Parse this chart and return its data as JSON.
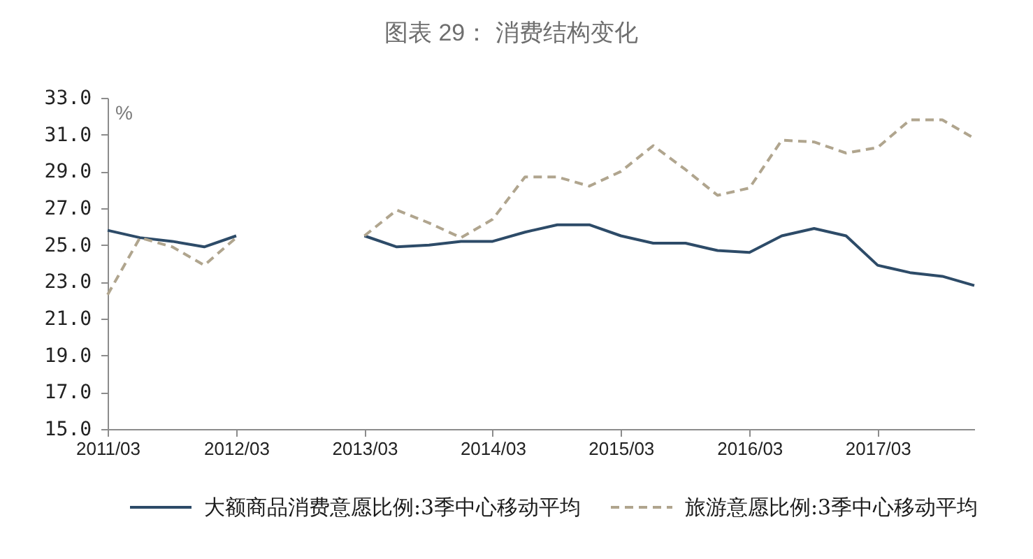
{
  "chart_data": {
    "type": "line",
    "title": "图表 29：  消费结构变化",
    "ylabel": "%",
    "x": [
      "2011-03",
      "2011-06",
      "2011-09",
      "2011-12",
      "2012-03",
      "2012-06",
      "2012-09",
      "2012-12",
      "2013-03",
      "2013-06",
      "2013-09",
      "2013-12",
      "2014-03",
      "2014-06",
      "2014-09",
      "2014-12",
      "2015-03",
      "2015-06",
      "2015-09",
      "2015-12",
      "2016-03",
      "2016-06",
      "2016-09",
      "2016-12",
      "2017-03",
      "2017-06",
      "2017-09",
      "2017-12"
    ],
    "series": [
      {
        "name": "大额商品消费意愿比例:3季中心移动平均",
        "color": "#2d4b68",
        "line_style": "solid",
        "values": [
          25.8,
          25.4,
          25.2,
          24.9,
          25.5,
          null,
          null,
          null,
          25.5,
          24.9,
          25.0,
          25.2,
          25.2,
          25.7,
          26.1,
          26.1,
          25.5,
          25.1,
          25.1,
          24.7,
          24.6,
          25.5,
          25.9,
          25.5,
          23.9,
          23.5,
          23.3,
          22.8
        ]
      },
      {
        "name": "旅游意愿比例:3季中心移动平均",
        "color": "#b0a58e",
        "line_style": "dashed",
        "values": [
          22.3,
          25.4,
          24.9,
          23.9,
          25.4,
          null,
          null,
          null,
          25.5,
          26.9,
          26.2,
          25.4,
          26.4,
          28.7,
          28.7,
          28.2,
          29.0,
          30.4,
          29.1,
          27.7,
          28.1,
          30.7,
          30.6,
          30.0,
          30.3,
          31.8,
          31.8,
          30.8
        ]
      }
    ],
    "xlim": [
      "2011-03",
      "2017-12"
    ],
    "xticks": [
      {
        "value": "2011-03",
        "label": "2011/03"
      },
      {
        "value": "2012-03",
        "label": "2012/03"
      },
      {
        "value": "2013-03",
        "label": "2013/03"
      },
      {
        "value": "2014-03",
        "label": "2014/03"
      },
      {
        "value": "2015-03",
        "label": "2015/03"
      },
      {
        "value": "2016-03",
        "label": "2016/03"
      },
      {
        "value": "2017-03",
        "label": "2017/03"
      }
    ],
    "ylim": [
      15,
      33
    ],
    "yticks": [
      {
        "value": 15,
        "label": "15.0"
      },
      {
        "value": 17,
        "label": "17.0"
      },
      {
        "value": 19,
        "label": "19.0"
      },
      {
        "value": 21,
        "label": "21.0"
      },
      {
        "value": 23,
        "label": "23.0"
      },
      {
        "value": 25,
        "label": "25.0"
      },
      {
        "value": 27,
        "label": "27.0"
      },
      {
        "value": 29,
        "label": "29.0"
      },
      {
        "value": 31,
        "label": "31.0"
      },
      {
        "value": 33,
        "label": "33.0"
      }
    ],
    "grid": false,
    "legend": "bottom",
    "marker": "none"
  }
}
